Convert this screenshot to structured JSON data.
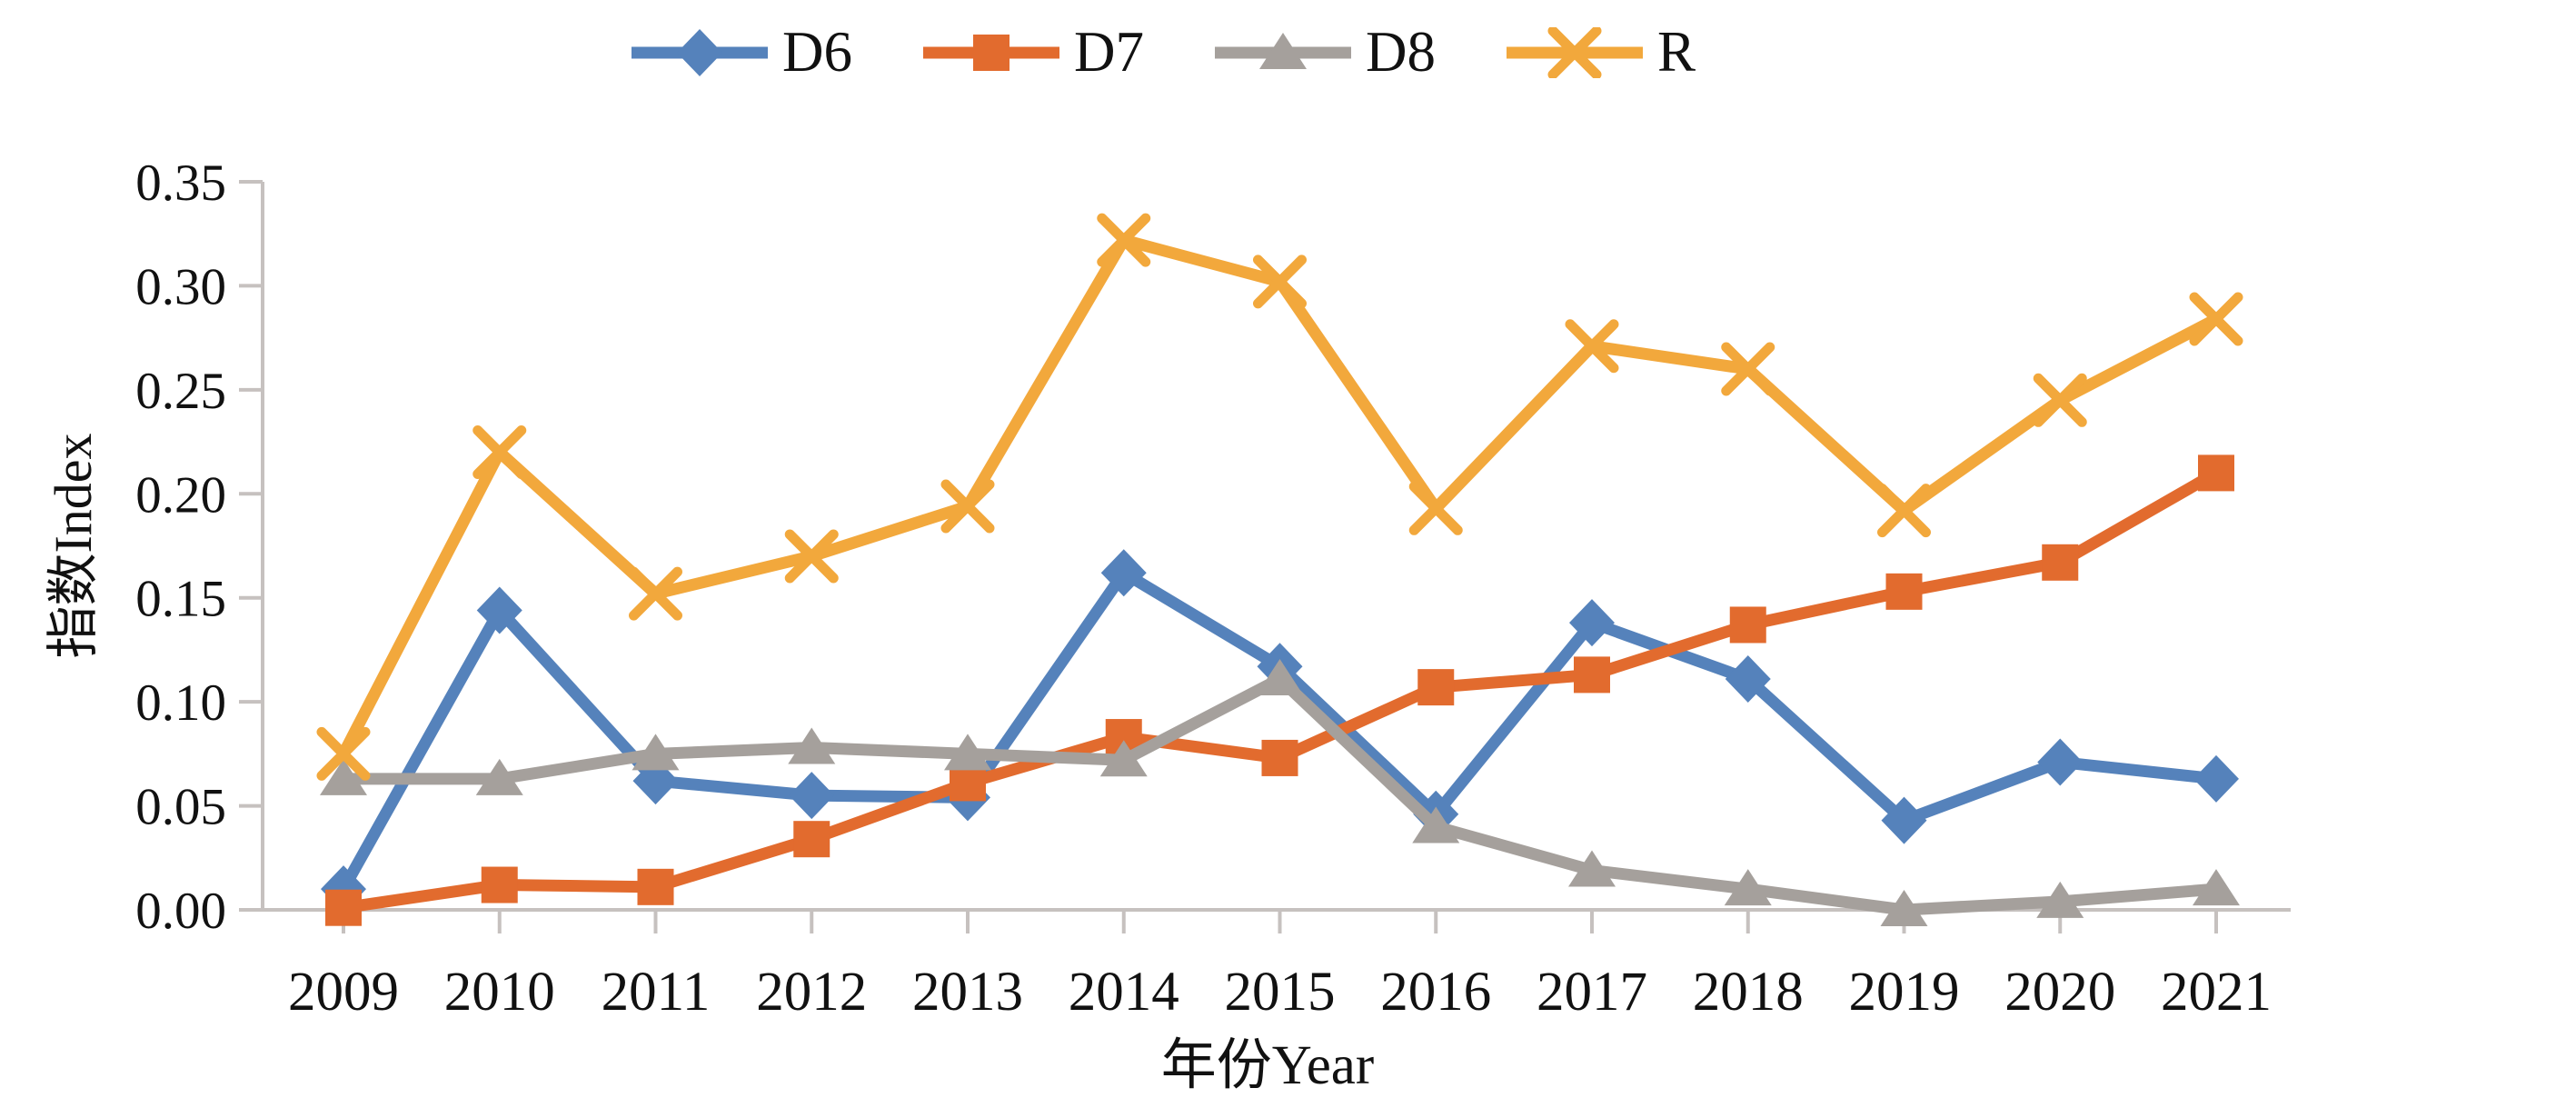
{
  "chart_data": {
    "type": "line",
    "title": "",
    "xlabel": "年份Year",
    "ylabel": "指数Index",
    "x": [
      "2009",
      "2010",
      "2011",
      "2012",
      "2013",
      "2014",
      "2015",
      "2016",
      "2017",
      "2018",
      "2019",
      "2020",
      "2021"
    ],
    "series": [
      {
        "name": "D6",
        "marker": "diamond",
        "color": "#5582BB",
        "values": [
          0.01,
          0.144,
          0.062,
          0.055,
          0.054,
          0.162,
          0.117,
          0.046,
          0.138,
          0.111,
          0.043,
          0.071,
          0.063
        ]
      },
      {
        "name": "D7",
        "marker": "square",
        "color": "#E26B2E",
        "values": [
          0.001,
          0.012,
          0.011,
          0.034,
          0.061,
          0.083,
          0.073,
          0.107,
          0.113,
          0.137,
          0.153,
          0.167,
          0.21
        ]
      },
      {
        "name": "D8",
        "marker": "triangle",
        "color": "#A5A09C",
        "values": [
          0.063,
          0.063,
          0.075,
          0.078,
          0.075,
          0.072,
          0.111,
          0.04,
          0.019,
          0.01,
          0.0,
          0.004,
          0.01
        ]
      },
      {
        "name": "R",
        "marker": "x",
        "color": "#F2A83C",
        "values": [
          0.075,
          0.22,
          0.152,
          0.17,
          0.194,
          0.322,
          0.302,
          0.193,
          0.271,
          0.26,
          0.192,
          0.245,
          0.284
        ]
      }
    ],
    "ylim": [
      0,
      0.35
    ],
    "ytick_step": 0.05,
    "grid": false,
    "legend_position": "top"
  },
  "axes": {
    "y_tick_labels": [
      "0.00",
      "0.05",
      "0.10",
      "0.15",
      "0.20",
      "0.25",
      "0.30",
      "0.35"
    ],
    "x_tick_labels": [
      "2009",
      "2010",
      "2011",
      "2012",
      "2013",
      "2014",
      "2015",
      "2016",
      "2017",
      "2018",
      "2019",
      "2020",
      "2021"
    ]
  },
  "style": {
    "background": "#FFFFFF",
    "axis_color": "#C6C1BF",
    "text_color": "#111111"
  }
}
